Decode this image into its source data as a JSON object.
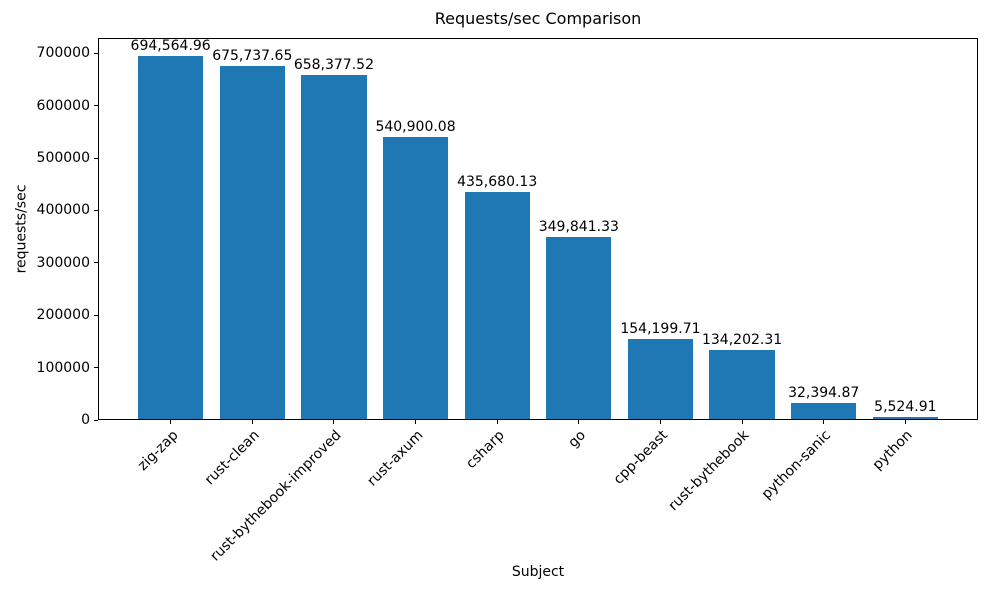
{
  "chart_data": {
    "type": "bar",
    "title": "Requests/sec Comparison",
    "xlabel": "Subject",
    "ylabel": "requests/sec",
    "categories": [
      "zig-zap",
      "rust-clean",
      "rust-bythebook-improved",
      "rust-axum",
      "csharp",
      "go",
      "cpp-beast",
      "rust-bythebook",
      "python-sanic",
      "python"
    ],
    "values": [
      694564.96,
      675737.65,
      658377.52,
      540900.08,
      435680.13,
      349841.33,
      154199.71,
      134202.31,
      32394.87,
      5524.91
    ],
    "value_labels": [
      "694,564.96",
      "675,737.65",
      "658,377.52",
      "540,900.08",
      "435,680.13",
      "349,841.33",
      "154,199.71",
      "134,202.31",
      "32,394.87",
      "5,524.91"
    ],
    "yticks": [
      0,
      100000,
      200000,
      300000,
      400000,
      500000,
      600000,
      700000
    ],
    "ytick_labels": [
      "0",
      "100000",
      "200000",
      "300000",
      "400000",
      "500000",
      "600000",
      "700000"
    ],
    "ylim": [
      0,
      729293
    ],
    "bar_color": "#1f77b4",
    "axis_color": "#000000",
    "background_color": "#ffffff",
    "grid": false,
    "legend": null,
    "xtick_rotation_deg": 45
  }
}
